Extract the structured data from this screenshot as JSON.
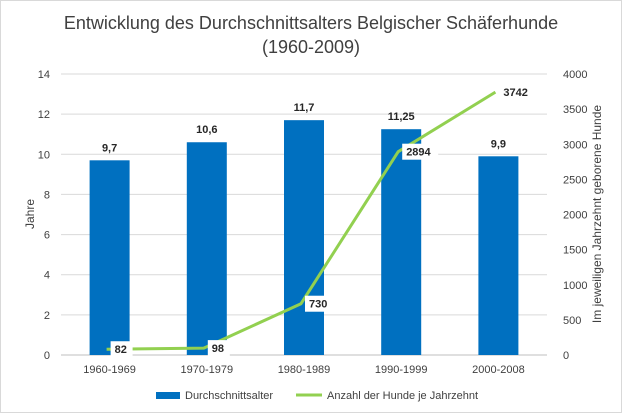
{
  "chart_data": {
    "type": "bar",
    "title": "Entwicklung des Durchschnittsalters Belgischer Schäferhunde",
    "subtitle": "(1960-2009)",
    "categories": [
      "1960-1969",
      "1970-1979",
      "1980-1989",
      "1990-1999",
      "2000-2008"
    ],
    "series": [
      {
        "name": "Durchschnittsalter",
        "type": "bar",
        "axis": "left",
        "color": "#0070c0",
        "values": [
          9.7,
          10.6,
          11.7,
          11.25,
          9.9
        ],
        "labels": [
          "9,7",
          "10,6",
          "11,7",
          "11,25",
          "9,9"
        ]
      },
      {
        "name": "Anzahl der Hunde je Jahrzehnt",
        "type": "line",
        "axis": "right",
        "color": "#92d050",
        "values": [
          82,
          98,
          730,
          2894,
          3742
        ],
        "labels": [
          "82",
          "98",
          "730",
          "2894",
          "3742"
        ]
      }
    ],
    "ylabel": "Jahre",
    "ylim": [
      0,
      14
    ],
    "yticks": [
      0,
      2,
      4,
      6,
      8,
      10,
      12,
      14
    ],
    "y2label": "Im jeweiligen Jahrzehnt geborene Hunde",
    "y2lim": [
      0,
      4000
    ],
    "y2ticks": [
      0,
      500,
      1000,
      1500,
      2000,
      2500,
      3000,
      3500,
      4000
    ],
    "grid": true,
    "legend": "bottom"
  }
}
